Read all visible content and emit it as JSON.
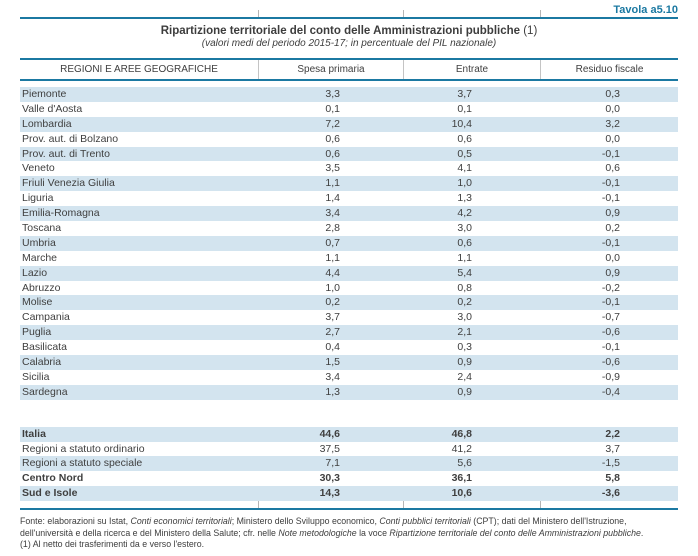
{
  "tavola_label": "Tavola a5.10",
  "title": {
    "main": "Ripartizione territoriale del conto delle Amministrazioni pubbliche",
    "note_ref": " (1)",
    "subtitle": "(valori medi del periodo 2015-17; in percentuale del PIL nazionale)"
  },
  "colors": {
    "accent": "#1b79a2",
    "stripe": "#d3e4ef",
    "text": "#3f3f3f"
  },
  "table": {
    "headers": [
      "REGIONI E AREE GEOGRAFICHE",
      "Spesa primaria",
      "Entrate",
      "Residuo fiscale"
    ],
    "rows": [
      {
        "name": "Piemonte",
        "spesa": "3,3",
        "entrate": "3,7",
        "residuo": "0,3"
      },
      {
        "name": "Valle d'Aosta",
        "spesa": "0,1",
        "entrate": "0,1",
        "residuo": "0,0"
      },
      {
        "name": "Lombardia",
        "spesa": "7,2",
        "entrate": "10,4",
        "residuo": "3,2"
      },
      {
        "name": "Prov. aut. di Bolzano",
        "spesa": "0,6",
        "entrate": "0,6",
        "residuo": "0,0"
      },
      {
        "name": "Prov. aut. di Trento",
        "spesa": "0,6",
        "entrate": "0,5",
        "residuo": "-0,1"
      },
      {
        "name": "Veneto",
        "spesa": "3,5",
        "entrate": "4,1",
        "residuo": "0,6"
      },
      {
        "name": "Friuli Venezia Giulia",
        "spesa": "1,1",
        "entrate": "1,0",
        "residuo": "-0,1"
      },
      {
        "name": "Liguria",
        "spesa": "1,4",
        "entrate": "1,3",
        "residuo": "-0,1"
      },
      {
        "name": "Emilia-Romagna",
        "spesa": "3,4",
        "entrate": "4,2",
        "residuo": "0,9"
      },
      {
        "name": "Toscana",
        "spesa": "2,8",
        "entrate": "3,0",
        "residuo": "0,2"
      },
      {
        "name": "Umbria",
        "spesa": "0,7",
        "entrate": "0,6",
        "residuo": "-0,1"
      },
      {
        "name": "Marche",
        "spesa": "1,1",
        "entrate": "1,1",
        "residuo": "0,0"
      },
      {
        "name": "Lazio",
        "spesa": "4,4",
        "entrate": "5,4",
        "residuo": "0,9"
      },
      {
        "name": "Abruzzo",
        "spesa": "1,0",
        "entrate": "0,8",
        "residuo": "-0,2"
      },
      {
        "name": "Molise",
        "spesa": "0,2",
        "entrate": "0,2",
        "residuo": "-0,1"
      },
      {
        "name": "Campania",
        "spesa": "3,7",
        "entrate": "3,0",
        "residuo": "-0,7"
      },
      {
        "name": "Puglia",
        "spesa": "2,7",
        "entrate": "2,1",
        "residuo": "-0,6"
      },
      {
        "name": "Basilicata",
        "spesa": "0,4",
        "entrate": "0,3",
        "residuo": "-0,1"
      },
      {
        "name": "Calabria",
        "spesa": "1,5",
        "entrate": "0,9",
        "residuo": "-0,6"
      },
      {
        "name": "Sicilia",
        "spesa": "3,4",
        "entrate": "2,4",
        "residuo": "-0,9"
      },
      {
        "name": "Sardegna",
        "spesa": "1,3",
        "entrate": "0,9",
        "residuo": "-0,4"
      }
    ],
    "summary_rows": [
      {
        "name": "Italia",
        "spesa": "44,6",
        "entrate": "46,8",
        "residuo": "2,2",
        "bold": true
      },
      {
        "name": "Regioni a statuto ordinario",
        "spesa": "37,5",
        "entrate": "41,2",
        "residuo": "3,7",
        "bold": false
      },
      {
        "name": "Regioni a statuto speciale",
        "spesa": "7,1",
        "entrate": "5,6",
        "residuo": "-1,5",
        "bold": false
      },
      {
        "name": "Centro Nord",
        "spesa": "30,3",
        "entrate": "36,1",
        "residuo": "5,8",
        "bold": true
      },
      {
        "name": "Sud e Isole",
        "spesa": "14,3",
        "entrate": "10,6",
        "residuo": "-3,6",
        "bold": true
      }
    ]
  },
  "footer": {
    "fonte_segments": [
      {
        "text": "Fonte: elaborazioni su Istat, ",
        "italic": false
      },
      {
        "text": "Conti economici territoriali",
        "italic": true
      },
      {
        "text": "; Ministero dello Sviluppo economico, ",
        "italic": false
      },
      {
        "text": "Conti pubblici territoriali",
        "italic": true
      },
      {
        "text": " (CPT); dati del Ministero dell'Istruzione, dell'università e della ricerca e del Ministero della Salute; cfr. nelle ",
        "italic": false
      },
      {
        "text": "Note metodologiche",
        "italic": true
      },
      {
        "text": " la voce ",
        "italic": false
      },
      {
        "text": "Ripartizione territoriale del conto delle Amministrazioni pubbliche",
        "italic": true
      },
      {
        "text": ".",
        "italic": false
      }
    ],
    "note": "(1) Al netto dei trasferimenti da e verso l'estero."
  }
}
